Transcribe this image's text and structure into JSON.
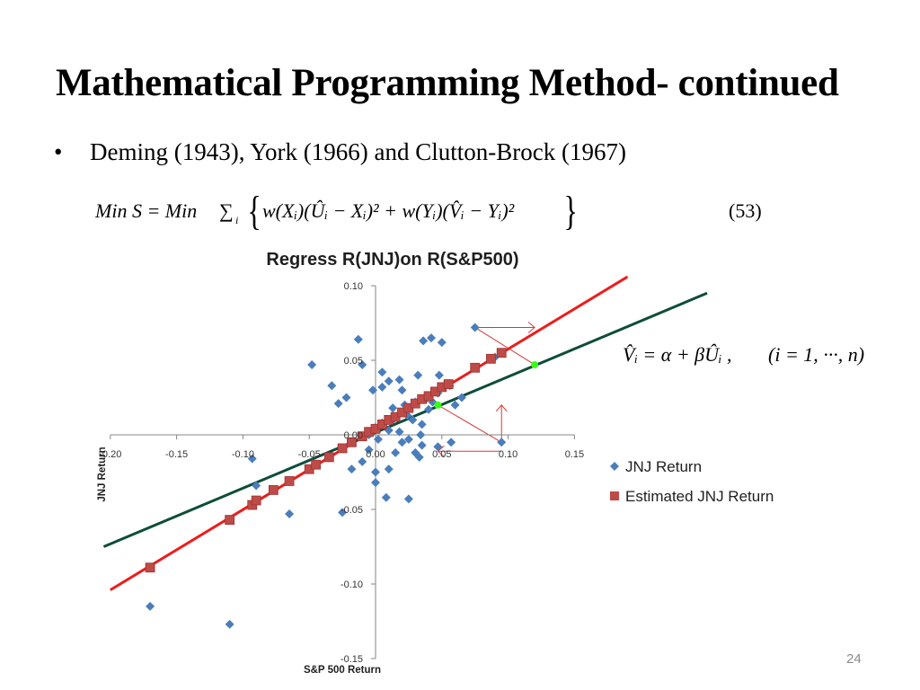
{
  "slide": {
    "title": "Mathematical Programming Method- continued",
    "bullet": "Deming (1943), York (1966) and Clutton-Brock (1967)",
    "equation_number": "(53)",
    "page_number": "24"
  },
  "formula_main": {
    "lhs": "Min S = Min",
    "sum": "∑",
    "sum_sub": "i",
    "body": "w(Xᵢ)(Ûᵢ − Xᵢ)² + w(Yᵢ)(V̂ᵢ − Yᵢ)²"
  },
  "formula_side": {
    "text": "V̂ᵢ = α + βÛᵢ ,",
    "range": "(i = 1, ···, n)"
  },
  "chart_data": {
    "type": "scatter",
    "title": "Regress R(JNJ)on R(S&P500)",
    "xlabel": "S&P 500 Return",
    "ylabel": "JNJ Return",
    "xlim": [
      -0.2,
      0.15
    ],
    "ylim": [
      -0.15,
      0.1
    ],
    "x_ticks": [
      "-0.20",
      "-0.15",
      "-0.10",
      "-0.05",
      "0.00",
      "0.05",
      "0.10",
      "0.15"
    ],
    "y_ticks": [
      "-0.15",
      "-0.10",
      "-0.05",
      "0.00",
      "0.05",
      "0.10"
    ],
    "x_tick_values": [
      -0.2,
      -0.15,
      -0.1,
      -0.05,
      0.0,
      0.05,
      0.1,
      0.15
    ],
    "y_tick_values": [
      -0.15,
      -0.1,
      -0.05,
      0.0,
      0.05,
      0.1
    ],
    "legend_position": "right",
    "series": [
      {
        "name": "JNJ Return",
        "marker": "diamond",
        "color": "#4a7ebb",
        "points": [
          [
            -0.17,
            -0.115
          ],
          [
            -0.11,
            -0.127
          ],
          [
            -0.093,
            -0.016
          ],
          [
            -0.09,
            -0.034
          ],
          [
            -0.065,
            -0.053
          ],
          [
            -0.048,
            0.047
          ],
          [
            -0.033,
            0.033
          ],
          [
            -0.028,
            0.021
          ],
          [
            -0.022,
            0.025
          ],
          [
            -0.013,
            0.064
          ],
          [
            -0.01,
            0.047
          ],
          [
            -0.025,
            -0.052
          ],
          [
            -0.018,
            -0.023
          ],
          [
            -0.01,
            -0.018
          ],
          [
            -0.005,
            -0.01
          ],
          [
            0.0,
            0.005
          ],
          [
            0.005,
            0.008
          ],
          [
            0.01,
            0.003
          ],
          [
            0.013,
            0.018
          ],
          [
            0.018,
            0.037
          ],
          [
            0.02,
            0.03
          ],
          [
            0.024,
            0.013
          ],
          [
            0.02,
            -0.005
          ],
          [
            0.015,
            -0.012
          ],
          [
            0.01,
            -0.023
          ],
          [
            0.008,
            -0.042
          ],
          [
            0.025,
            -0.003
          ],
          [
            0.028,
            0.01
          ],
          [
            0.03,
            0.022
          ],
          [
            0.032,
            0.04
          ],
          [
            0.036,
            0.063
          ],
          [
            0.042,
            0.065
          ],
          [
            0.048,
            0.04
          ],
          [
            0.05,
            0.062
          ],
          [
            0.047,
            0.028
          ],
          [
            0.038,
            0.024
          ],
          [
            0.035,
            0.007
          ],
          [
            0.034,
            0.0
          ],
          [
            0.035,
            -0.007
          ],
          [
            0.03,
            -0.012
          ],
          [
            0.033,
            -0.015
          ],
          [
            0.047,
            -0.008
          ],
          [
            0.057,
            -0.005
          ],
          [
            0.056,
            0.033
          ],
          [
            0.06,
            0.02
          ],
          [
            0.065,
            0.025
          ],
          [
            0.025,
            -0.043
          ],
          [
            0.0,
            -0.025
          ],
          [
            0.0,
            -0.032
          ],
          [
            -0.002,
            0.03
          ],
          [
            0.005,
            0.032
          ],
          [
            0.01,
            0.036
          ],
          [
            0.005,
            0.042
          ],
          [
            0.09,
            0.052
          ],
          [
            0.075,
            0.072
          ],
          [
            0.095,
            -0.005
          ],
          [
            0.04,
            0.017
          ],
          [
            0.043,
            0.022
          ],
          [
            0.018,
            0.002
          ],
          [
            -0.005,
            0.0
          ],
          [
            0.002,
            -0.003
          ],
          [
            0.013,
            0.01
          ],
          [
            0.02,
            0.015
          ],
          [
            0.022,
            0.02
          ]
        ]
      },
      {
        "name": "Estimated JNJ Return",
        "marker": "square",
        "color": "#be4b48",
        "points": [
          [
            -0.17,
            -0.089
          ],
          [
            -0.11,
            -0.057
          ],
          [
            -0.093,
            -0.047
          ],
          [
            -0.09,
            -0.044
          ],
          [
            -0.077,
            -0.037
          ],
          [
            -0.065,
            -0.031
          ],
          [
            -0.05,
            -0.023
          ],
          [
            -0.045,
            -0.02
          ],
          [
            -0.035,
            -0.015
          ],
          [
            -0.025,
            -0.009
          ],
          [
            -0.018,
            -0.005
          ],
          [
            -0.01,
            -0.001
          ],
          [
            -0.005,
            0.002
          ],
          [
            0.0,
            0.004
          ],
          [
            0.005,
            0.007
          ],
          [
            0.01,
            0.01
          ],
          [
            0.015,
            0.012
          ],
          [
            0.02,
            0.015
          ],
          [
            0.025,
            0.018
          ],
          [
            0.03,
            0.021
          ],
          [
            0.035,
            0.024
          ],
          [
            0.04,
            0.026
          ],
          [
            0.045,
            0.029
          ],
          [
            0.05,
            0.032
          ],
          [
            0.055,
            0.034
          ],
          [
            0.075,
            0.045
          ],
          [
            0.087,
            0.051
          ],
          [
            0.095,
            0.055
          ]
        ]
      }
    ],
    "lines": [
      {
        "name": "red regression line",
        "color": "#ee1c1c",
        "from": [
          -0.2,
          -0.104
        ],
        "to": [
          0.19,
          0.106
        ]
      },
      {
        "name": "dark green line",
        "color": "#0d4d3a",
        "from": [
          -0.205,
          -0.075
        ],
        "to": [
          0.25,
          0.095
        ]
      }
    ],
    "highlight_points": [
      [
        0.12,
        0.047
      ],
      [
        0.047,
        0.02
      ]
    ],
    "highlight_color": "#39ff14",
    "annotation_color": "#d23b3b"
  }
}
